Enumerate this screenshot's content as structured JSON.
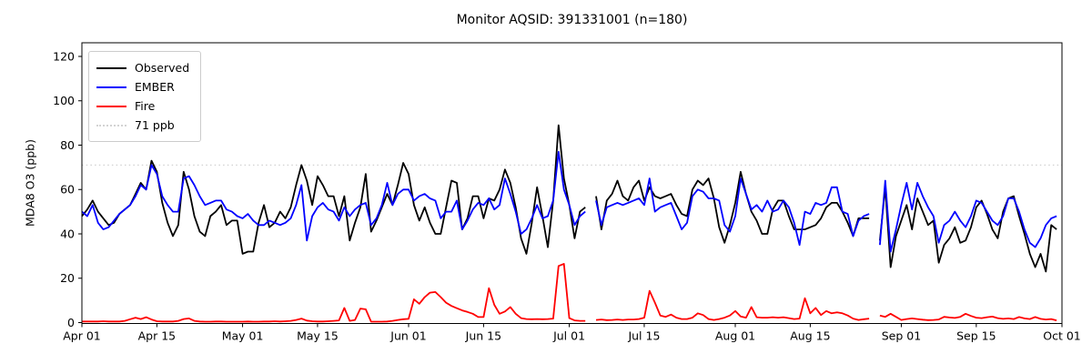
{
  "title": "Monitor AQSID: 391331001 (n=180)",
  "y_axis": {
    "label": "MDA8 O3 (ppb)",
    "ticks": [
      0,
      20,
      40,
      60,
      80,
      100,
      120
    ]
  },
  "x_axis": {
    "ticks": [
      {
        "label": "Apr 01",
        "day": 0
      },
      {
        "label": "Apr 15",
        "day": 14
      },
      {
        "label": "May 01",
        "day": 30
      },
      {
        "label": "May 15",
        "day": 44
      },
      {
        "label": "Jun 01",
        "day": 61
      },
      {
        "label": "Jun 15",
        "day": 75
      },
      {
        "label": "Jul 01",
        "day": 91
      },
      {
        "label": "Jul 15",
        "day": 105
      },
      {
        "label": "Aug 01",
        "day": 122
      },
      {
        "label": "Aug 15",
        "day": 136
      },
      {
        "label": "Sep 01",
        "day": 153
      },
      {
        "label": "Sep 15",
        "day": 167
      },
      {
        "label": "Oct 01",
        "day": 183
      }
    ]
  },
  "legend": {
    "items": [
      {
        "label": "Observed",
        "color": "#000000",
        "style": "solid"
      },
      {
        "label": "EMBER",
        "color": "#0000ff",
        "style": "solid"
      },
      {
        "label": "Fire",
        "color": "#ff0000",
        "style": "solid"
      },
      {
        "label": "71 ppb",
        "color": "#d3d3d3",
        "style": "dotted"
      }
    ]
  },
  "chart_data": {
    "type": "line",
    "title": "Monitor AQSID: 391331001 (n=180)",
    "xlabel": "",
    "ylabel": "MDA8 O3 (ppb)",
    "x_unit": "daily, day index 0 = Apr 01, 183 days to Oct 01",
    "x_range_days": 183,
    "ylim": [
      0,
      126
    ],
    "grid": false,
    "legend_position": "upper left",
    "threshold_line": {
      "value": 71,
      "label": "71 ppb",
      "color": "#d3d3d3",
      "style": "dotted"
    },
    "missing_days": [
      95,
      148
    ],
    "series": [
      {
        "name": "Observed",
        "color": "#000000",
        "values": [
          48,
          51,
          55,
          50,
          47,
          44,
          45,
          49,
          51,
          53,
          58,
          63,
          60,
          73,
          68,
          54,
          45,
          39,
          44,
          68,
          60,
          48,
          41,
          39,
          48,
          50,
          53,
          44,
          46,
          46,
          31,
          32,
          32,
          45,
          53,
          43,
          45,
          50,
          47,
          52,
          62,
          71,
          64,
          53,
          66,
          62,
          57,
          57,
          48,
          57,
          37,
          45,
          52,
          67,
          41,
          46,
          52,
          58,
          53,
          62,
          72,
          67,
          53,
          46,
          52,
          45,
          40,
          40,
          52,
          64,
          63,
          42,
          47,
          57,
          57,
          47,
          56,
          55,
          60,
          69,
          63,
          52,
          38,
          31,
          45,
          61,
          48,
          34,
          55,
          89,
          65,
          53,
          38,
          50,
          52,
          null,
          57,
          42,
          55,
          58,
          64,
          57,
          55,
          61,
          64,
          55,
          61,
          57,
          56,
          57,
          58,
          53,
          49,
          48,
          60,
          64,
          62,
          65,
          56,
          43,
          36,
          44,
          54,
          68,
          58,
          50,
          46,
          40,
          40,
          51,
          55,
          55,
          48,
          42,
          42,
          42,
          43,
          44,
          47,
          52,
          54,
          54,
          50,
          45,
          39,
          47,
          47,
          47,
          null,
          37,
          61,
          25,
          39,
          46,
          53,
          42,
          56,
          50,
          44,
          46,
          27,
          35,
          38,
          43,
          36,
          37,
          43,
          52,
          55,
          49,
          42,
          38,
          50,
          56,
          57,
          48,
          40,
          31,
          25,
          31,
          23,
          44,
          42
        ]
      },
      {
        "name": "EMBER",
        "color": "#0000ff",
        "values": [
          50,
          48,
          53,
          45,
          42,
          43,
          46,
          49,
          51,
          53,
          57,
          62,
          60,
          71,
          67,
          57,
          53,
          50,
          50,
          65,
          66,
          62,
          57,
          53,
          54,
          55,
          55,
          51,
          50,
          48,
          47,
          49,
          46,
          44,
          44,
          46,
          45,
          44,
          45,
          47,
          53,
          62,
          37,
          48,
          52,
          54,
          51,
          50,
          46,
          52,
          48,
          51,
          53,
          54,
          44,
          47,
          53,
          63,
          53,
          58,
          60,
          60,
          55,
          57,
          58,
          56,
          55,
          47,
          50,
          50,
          55,
          42,
          46,
          51,
          54,
          53,
          56,
          51,
          53,
          65,
          58,
          50,
          40,
          42,
          47,
          53,
          47,
          48,
          55,
          77,
          60,
          53,
          44,
          48,
          50,
          null,
          55,
          44,
          52,
          53,
          54,
          53,
          54,
          55,
          56,
          53,
          65,
          50,
          52,
          53,
          54,
          48,
          42,
          45,
          57,
          60,
          59,
          56,
          56,
          55,
          44,
          41,
          48,
          65,
          58,
          51,
          53,
          50,
          55,
          50,
          51,
          55,
          52,
          45,
          35,
          50,
          49,
          54,
          53,
          54,
          61,
          61,
          50,
          49,
          39,
          46,
          48,
          49,
          null,
          35,
          64,
          32,
          42,
          53,
          63,
          51,
          63,
          57,
          52,
          48,
          36,
          44,
          46,
          50,
          46,
          43,
          48,
          55,
          54,
          50,
          46,
          44,
          48,
          56,
          56,
          50,
          42,
          36,
          34,
          38,
          44,
          47,
          48
        ]
      },
      {
        "name": "Fire",
        "color": "#ff0000",
        "values": [
          0.5,
          0.5,
          0.5,
          0.5,
          0.6,
          0.5,
          0.5,
          0.5,
          0.8,
          1.5,
          2.2,
          1.6,
          2.4,
          1.4,
          0.6,
          0.5,
          0.5,
          0.5,
          0.8,
          1.6,
          1.9,
          0.8,
          0.5,
          0.4,
          0.4,
          0.5,
          0.5,
          0.4,
          0.4,
          0.4,
          0.4,
          0.5,
          0.4,
          0.4,
          0.5,
          0.5,
          0.6,
          0.5,
          0.6,
          0.8,
          1.2,
          1.8,
          0.9,
          0.6,
          0.5,
          0.5,
          0.6,
          0.8,
          1.0,
          6.6,
          0.8,
          1.2,
          6.3,
          6.0,
          0.4,
          0.4,
          0.4,
          0.5,
          0.8,
          1.2,
          1.5,
          1.7,
          10.5,
          8.5,
          11.5,
          13.5,
          13.8,
          11.5,
          9.0,
          7.5,
          6.5,
          5.5,
          4.8,
          4.0,
          2.5,
          2.5,
          15.5,
          8.0,
          4.0,
          5.0,
          7.0,
          4.0,
          2.0,
          1.6,
          1.5,
          1.6,
          1.5,
          1.6,
          1.8,
          25.5,
          26.5,
          2.0,
          1.0,
          0.8,
          0.8,
          null,
          1.2,
          1.4,
          1.1,
          1.2,
          1.4,
          1.2,
          1.4,
          1.4,
          1.6,
          2.2,
          14.3,
          9.0,
          3.2,
          2.6,
          3.6,
          2.2,
          1.6,
          1.6,
          2.2,
          4.2,
          3.4,
          1.6,
          1.2,
          1.6,
          2.2,
          3.2,
          5.2,
          2.8,
          2.2,
          7.0,
          2.4,
          2.2,
          2.2,
          2.4,
          2.2,
          2.4,
          2.0,
          1.6,
          1.8,
          11.0,
          4.2,
          6.6,
          3.4,
          5.2,
          4.2,
          4.6,
          4.2,
          3.2,
          1.8,
          1.2,
          1.5,
          1.8,
          null,
          3.2,
          2.6,
          4.0,
          2.6,
          1.2,
          1.6,
          1.9,
          1.6,
          1.3,
          1.1,
          1.2,
          1.4,
          2.6,
          2.3,
          2.1,
          2.6,
          4.0,
          3.0,
          2.2,
          2.0,
          2.4,
          2.7,
          2.0,
          1.7,
          1.9,
          1.6,
          2.5,
          1.9,
          1.6,
          2.5,
          1.7,
          1.4,
          1.6,
          1.0
        ]
      }
    ]
  }
}
